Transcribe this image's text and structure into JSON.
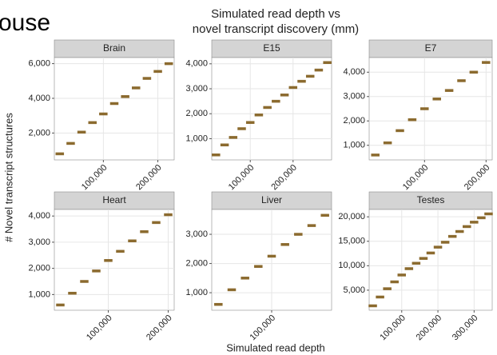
{
  "page": {
    "fragment": "ouse",
    "title": [
      "Simulated read depth vs",
      "novel transcript discovery (mm)"
    ],
    "x_label": "Simulated read depth",
    "y_label": "# Novel transcript structures"
  },
  "chart_data": [
    {
      "type": "scatter",
      "title": "Brain",
      "color": "#8b6a2e",
      "grid": true,
      "x": [
        20000,
        40000,
        60000,
        80000,
        100000,
        120000,
        140000,
        160000,
        180000,
        200000,
        220000
      ],
      "values": [
        800,
        1400,
        2050,
        2600,
        3100,
        3700,
        4100,
        4600,
        5150,
        5550,
        6000
      ],
      "xlim": [
        10000,
        230000
      ],
      "xticks": [
        {
          "value": 100000,
          "label": "100,000"
        },
        {
          "value": 200000,
          "label": "200,000"
        }
      ],
      "ylim": [
        450,
        6350
      ],
      "yticks": [
        {
          "value": 2000,
          "label": "2,000"
        },
        {
          "value": 4000,
          "label": "4,000"
        },
        {
          "value": 6000,
          "label": "6,000"
        }
      ]
    },
    {
      "type": "scatter",
      "title": "E15",
      "color": "#8b6a2e",
      "grid": true,
      "x": [
        20000,
        40000,
        60000,
        80000,
        100000,
        120000,
        140000,
        160000,
        180000,
        200000,
        220000,
        240000,
        260000,
        280000
      ],
      "values": [
        350,
        750,
        1050,
        1400,
        1650,
        1950,
        2250,
        2500,
        2750,
        3050,
        3300,
        3500,
        3750,
        4050
      ],
      "xlim": [
        10000,
        290000
      ],
      "xticks": [
        {
          "value": 100000,
          "label": "100,000"
        },
        {
          "value": 200000,
          "label": "200,000"
        }
      ],
      "ylim": [
        150,
        4250
      ],
      "yticks": [
        {
          "value": 1000,
          "label": "1,000"
        },
        {
          "value": 2000,
          "label": "2,000"
        },
        {
          "value": 3000,
          "label": "3,000"
        },
        {
          "value": 4000,
          "label": "4,000"
        }
      ]
    },
    {
      "type": "scatter",
      "title": "E7",
      "color": "#8b6a2e",
      "grid": true,
      "x": [
        20000,
        40000,
        60000,
        80000,
        100000,
        120000,
        140000,
        160000,
        180000,
        200000
      ],
      "values": [
        600,
        1100,
        1600,
        2050,
        2500,
        2900,
        3250,
        3650,
        4000,
        4400
      ],
      "xlim": [
        10000,
        210000
      ],
      "xticks": [
        {
          "value": 100000,
          "label": "100,000"
        },
        {
          "value": 200000,
          "label": "200,000"
        }
      ],
      "ylim": [
        400,
        4600
      ],
      "yticks": [
        {
          "value": 1000,
          "label": "1,000"
        },
        {
          "value": 2000,
          "label": "2,000"
        },
        {
          "value": 3000,
          "label": "3,000"
        },
        {
          "value": 4000,
          "label": "4,000"
        }
      ]
    },
    {
      "type": "scatter",
      "title": "Heart",
      "color": "#8b6a2e",
      "grid": true,
      "x": [
        20000,
        40000,
        60000,
        80000,
        100000,
        120000,
        140000,
        160000,
        180000,
        200000
      ],
      "values": [
        600,
        1050,
        1500,
        1900,
        2300,
        2650,
        3050,
        3400,
        3750,
        4050
      ],
      "xlim": [
        10000,
        210000
      ],
      "xticks": [
        {
          "value": 100000,
          "label": "100,000"
        },
        {
          "value": 200000,
          "label": "200,000"
        }
      ],
      "ylim": [
        400,
        4250
      ],
      "yticks": [
        {
          "value": 1000,
          "label": "1,000"
        },
        {
          "value": 2000,
          "label": "2,000"
        },
        {
          "value": 3000,
          "label": "3,000"
        },
        {
          "value": 4000,
          "label": "4,000"
        }
      ]
    },
    {
      "type": "scatter",
      "title": "Liver",
      "color": "#8b6a2e",
      "grid": true,
      "x": [
        20000,
        40000,
        60000,
        80000,
        100000,
        120000,
        140000,
        160000,
        180000
      ],
      "values": [
        600,
        1100,
        1500,
        1900,
        2250,
        2650,
        3000,
        3300,
        3650
      ],
      "xlim": [
        10000,
        190000
      ],
      "xticks": [
        {
          "value": 100000,
          "label": "100,000"
        }
      ],
      "ylim": [
        400,
        3850
      ],
      "yticks": [
        {
          "value": 1000,
          "label": "1,000"
        },
        {
          "value": 2000,
          "label": "2,000"
        },
        {
          "value": 3000,
          "label": "3,000"
        }
      ]
    },
    {
      "type": "scatter",
      "title": "Testes",
      "color": "#8b6a2e",
      "grid": true,
      "x": [
        20000,
        40000,
        60000,
        80000,
        100000,
        120000,
        140000,
        160000,
        180000,
        200000,
        220000,
        240000,
        260000,
        280000,
        300000,
        320000,
        340000
      ],
      "values": [
        1800,
        3600,
        5300,
        6700,
        8100,
        9400,
        10500,
        11500,
        12600,
        13800,
        14800,
        16000,
        17000,
        18000,
        18900,
        19800,
        20600
      ],
      "xlim": [
        10000,
        350000
      ],
      "xticks": [
        {
          "value": 100000,
          "label": "100,000"
        },
        {
          "value": 200000,
          "label": "200,000"
        },
        {
          "value": 300000,
          "label": "300,000"
        }
      ],
      "ylim": [
        900,
        21500
      ],
      "yticks": [
        {
          "value": 5000,
          "label": "5,000"
        },
        {
          "value": 10000,
          "label": "10,000"
        },
        {
          "value": 15000,
          "label": "15,000"
        },
        {
          "value": 20000,
          "label": "20,000"
        }
      ]
    }
  ]
}
